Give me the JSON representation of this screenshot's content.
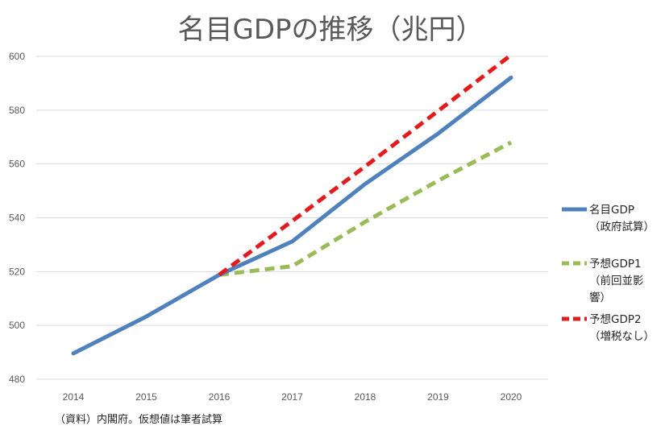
{
  "chart_data": {
    "type": "line",
    "title": "名目GDPの推移（兆円）",
    "x": [
      "2014",
      "2015",
      "2016",
      "2017",
      "2018",
      "2019",
      "2020"
    ],
    "ylim": [
      480,
      600
    ],
    "yticks": [
      480,
      500,
      520,
      540,
      560,
      580,
      600
    ],
    "grid": true,
    "legend_position": "right",
    "series": [
      {
        "name": "名目GDP（政府試算）",
        "legend_lines": [
          "名目GDP",
          "（政府試算）"
        ],
        "color": "#4f81bd",
        "dash": "solid",
        "values": [
          489.6,
          503.3,
          518.8,
          531.2,
          552.6,
          571.3,
          592.1
        ]
      },
      {
        "name": "予想GDP1（前回並影響）",
        "legend_lines": [
          "予想GDP1",
          "（前回並影",
          "響）"
        ],
        "color": "#9bbb59",
        "dash": "dashed",
        "values": [
          null,
          null,
          518.8,
          522.0,
          538.5,
          553.8,
          568.0
        ]
      },
      {
        "name": "予想GDP2（増税なし）",
        "legend_lines": [
          "予想GDP2",
          "（増税なし）"
        ],
        "color": "#e41a1c",
        "dash": "dashed",
        "values": [
          null,
          null,
          518.8,
          538.8,
          559.1,
          579.7,
          600.5
        ]
      }
    ],
    "source_note": "（資料）内閣府。仮想値は筆者試算"
  }
}
